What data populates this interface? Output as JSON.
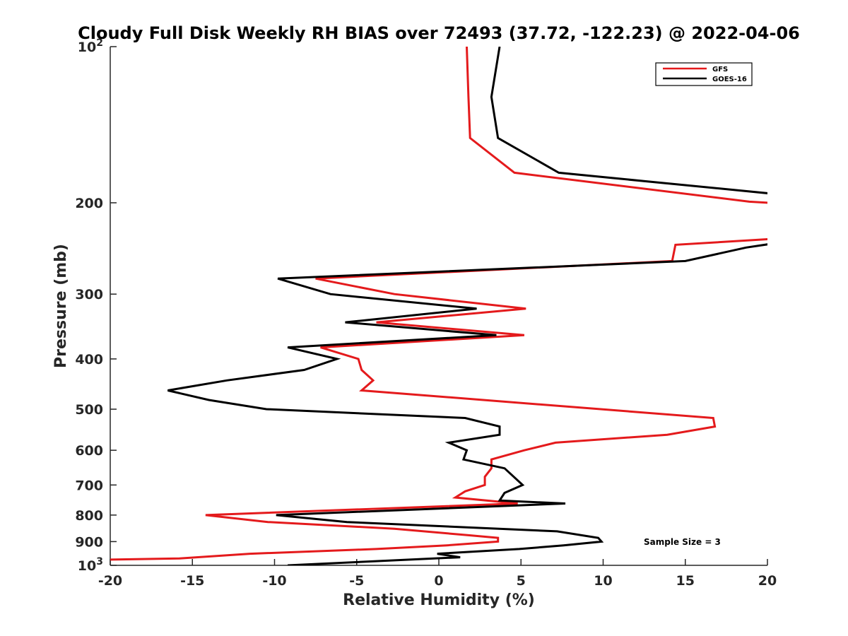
{
  "chart_data": {
    "type": "line",
    "title": "Cloudy Full Disk Weekly RH BIAS over 72493 (37.72, -122.23) @ 2022-04-06",
    "xlabel": "Relative Humidity (%)",
    "ylabel": "Pressure (mb)",
    "xlim": [
      -20,
      20
    ],
    "ylim": [
      100,
      1000
    ],
    "y_scale": "log",
    "y_reversed": true,
    "grid": false,
    "legend_position": "top-right",
    "xticks": [
      -20,
      -15,
      -10,
      -5,
      0,
      5,
      10,
      15,
      20
    ],
    "yticks": [
      100,
      200,
      300,
      400,
      500,
      600,
      700,
      800,
      900,
      1000
    ],
    "ytick_labels": [
      {
        "base": "10",
        "exp": "2"
      },
      {
        "base": "200",
        "exp": ""
      },
      {
        "base": "300",
        "exp": ""
      },
      {
        "base": "400",
        "exp": ""
      },
      {
        "base": "500",
        "exp": ""
      },
      {
        "base": "600",
        "exp": ""
      },
      {
        "base": "700",
        "exp": ""
      },
      {
        "base": "800",
        "exp": ""
      },
      {
        "base": "900",
        "exp": ""
      },
      {
        "base": "10",
        "exp": "3"
      }
    ],
    "annotation": "Sample Size = 3",
    "series": [
      {
        "name": "GFS",
        "color": "#e41a1c",
        "points": [
          [
            1.7,
            100
          ],
          [
            1.8,
            125
          ],
          [
            1.9,
            150
          ],
          [
            4.6,
            175
          ],
          [
            18.9,
            199
          ],
          [
            20.1,
            200
          ],
          [
            20.1,
            235
          ],
          [
            14.4,
            241
          ],
          [
            14.2,
            259
          ],
          [
            -7.5,
            280
          ],
          [
            -2.7,
            300
          ],
          [
            5.3,
            320
          ],
          [
            -3.8,
            340
          ],
          [
            5.2,
            360
          ],
          [
            -7.2,
            380
          ],
          [
            -4.9,
            400
          ],
          [
            -4.7,
            420
          ],
          [
            -4.0,
            440
          ],
          [
            -4.7,
            460
          ],
          [
            16.7,
            520
          ],
          [
            16.8,
            540
          ],
          [
            13.9,
            560
          ],
          [
            7.1,
            580
          ],
          [
            5.2,
            600
          ],
          [
            3.2,
            625
          ],
          [
            3.2,
            650
          ],
          [
            2.8,
            675
          ],
          [
            2.8,
            700
          ],
          [
            1.6,
            720
          ],
          [
            1.0,
            740
          ],
          [
            4.8,
            760
          ],
          [
            -14.2,
            800
          ],
          [
            -10.4,
            825
          ],
          [
            -2.7,
            850
          ],
          [
            1.8,
            875
          ],
          [
            3.6,
            885
          ],
          [
            3.6,
            900
          ],
          [
            0.5,
            915
          ],
          [
            -3.8,
            930
          ],
          [
            -11.5,
            950
          ],
          [
            -15.8,
            970
          ],
          [
            -20.1,
            975
          ]
        ]
      },
      {
        "name": "GOES-16",
        "color": "#000000",
        "points": [
          [
            3.7,
            100
          ],
          [
            3.2,
            125
          ],
          [
            3.6,
            150
          ],
          [
            7.3,
            175
          ],
          [
            20.2,
            192
          ],
          [
            20.2,
            240
          ],
          [
            18.7,
            244
          ],
          [
            15.0,
            259
          ],
          [
            -9.8,
            280
          ],
          [
            -6.6,
            300
          ],
          [
            2.3,
            320
          ],
          [
            -5.7,
            340
          ],
          [
            3.5,
            360
          ],
          [
            -9.2,
            380
          ],
          [
            -6.2,
            400
          ],
          [
            -8.2,
            420
          ],
          [
            -12.9,
            440
          ],
          [
            -16.5,
            460
          ],
          [
            -14.0,
            480
          ],
          [
            -10.5,
            500
          ],
          [
            1.6,
            520
          ],
          [
            3.7,
            540
          ],
          [
            3.7,
            560
          ],
          [
            0.6,
            580
          ],
          [
            1.7,
            600
          ],
          [
            1.5,
            625
          ],
          [
            4.0,
            650
          ],
          [
            5.1,
            700
          ],
          [
            4.0,
            725
          ],
          [
            3.7,
            750
          ],
          [
            7.7,
            760
          ],
          [
            -9.9,
            800
          ],
          [
            -5.6,
            825
          ],
          [
            7.2,
            860
          ],
          [
            9.7,
            885
          ],
          [
            9.9,
            900
          ],
          [
            7.6,
            915
          ],
          [
            4.9,
            930
          ],
          [
            -0.1,
            950
          ],
          [
            1.3,
            965
          ],
          [
            -9.2,
            1000
          ]
        ]
      }
    ]
  }
}
